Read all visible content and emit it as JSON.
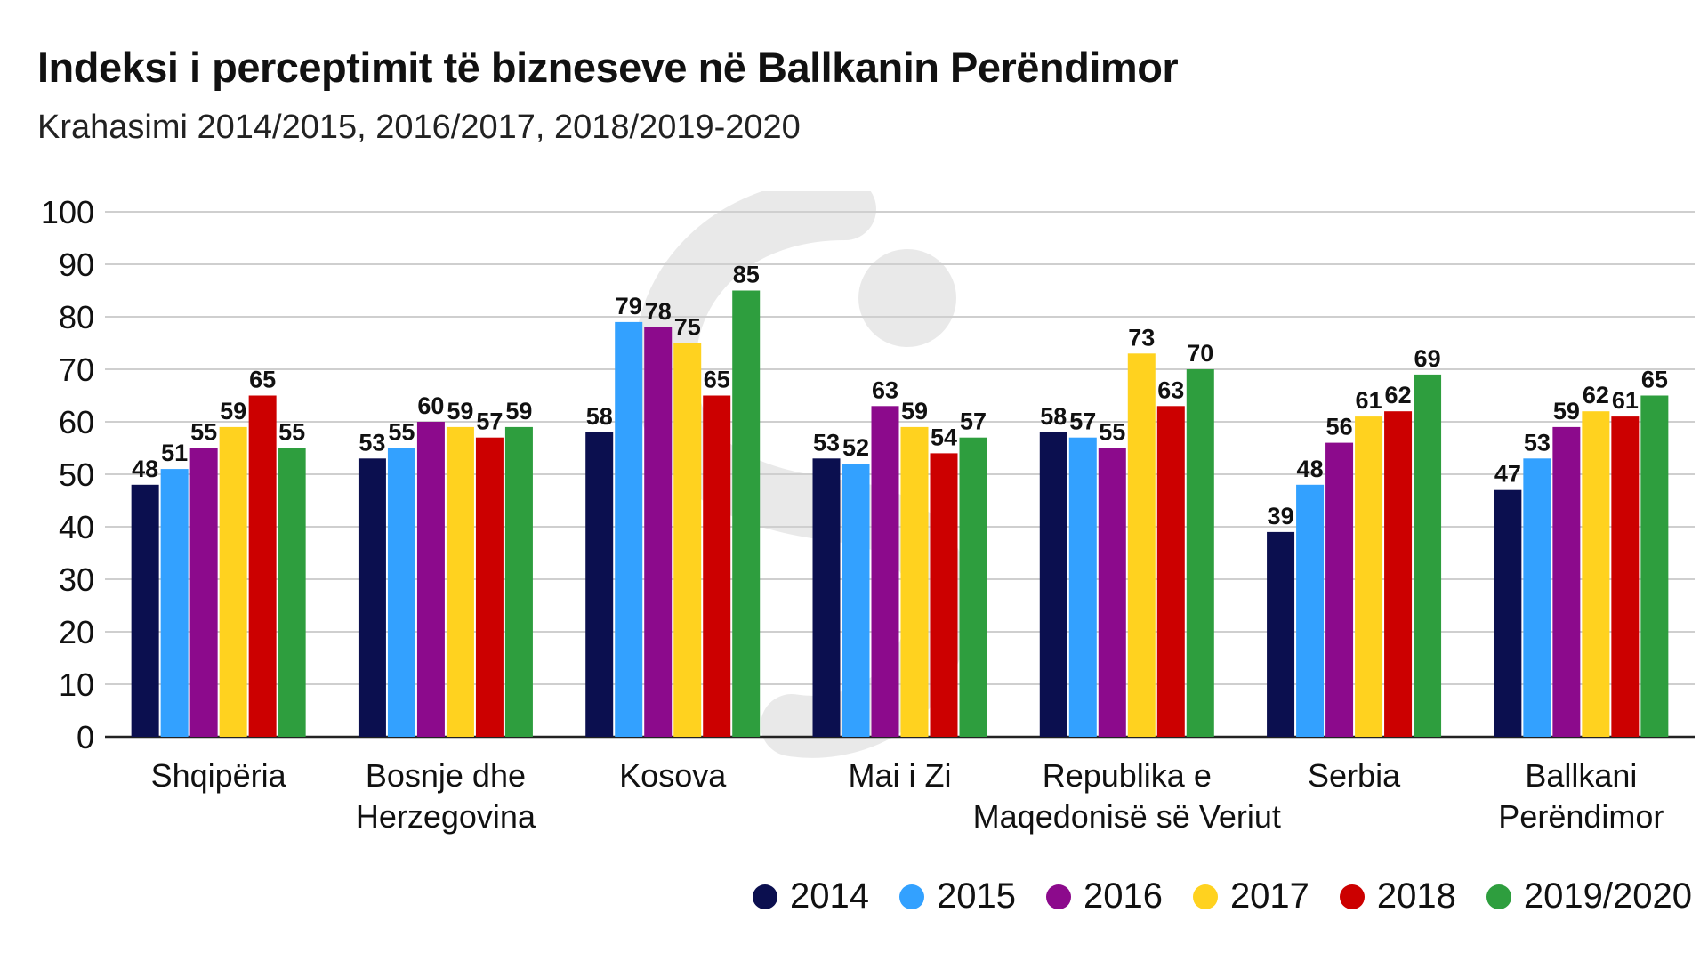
{
  "title": "Indeksi i perceptimit të bizneseve në Ballkanin Perëndimor",
  "subtitle": "Krahasimi 2014/2015, 2016/2017, 2018/2019-2020",
  "colors": {
    "2014": "#0b0f4f",
    "2015": "#33a1ff",
    "2016": "#8c0a8c",
    "2017": "#ffd21f",
    "2018": "#cc0000",
    "2019/2020": "#2e9e3e",
    "grid": "#cfcfcf",
    "axis": "#222222"
  },
  "chart_data": {
    "type": "bar",
    "title": "Indeksi i perceptimit të bizneseve në Ballkanin Perëndimor",
    "subtitle": "Krahasimi 2014/2015, 2016/2017, 2018/2019-2020",
    "xlabel": "",
    "ylabel": "",
    "ylim": [
      0,
      100
    ],
    "yticks": [
      "0",
      "10",
      "20",
      "30",
      "40",
      "50",
      "60",
      "70",
      "80",
      "90",
      "100"
    ],
    "grid": true,
    "legend_position": "bottom-right",
    "categories": [
      [
        "Shqipëria"
      ],
      [
        "Bosnje dhe",
        "Herzegovina"
      ],
      [
        "Kosova"
      ],
      [
        "Mai i Zi"
      ],
      [
        "Republika e",
        "Maqedonisë së Veriut"
      ],
      [
        "Serbia"
      ],
      [
        "Ballkani",
        "Perëndimor"
      ]
    ],
    "series": [
      {
        "name": "2014",
        "values": [
          48,
          53,
          58,
          53,
          58,
          39,
          47
        ]
      },
      {
        "name": "2015",
        "values": [
          51,
          55,
          79,
          52,
          57,
          48,
          53
        ]
      },
      {
        "name": "2016",
        "values": [
          55,
          60,
          78,
          63,
          55,
          56,
          59
        ]
      },
      {
        "name": "2017",
        "values": [
          59,
          59,
          75,
          59,
          73,
          61,
          62
        ]
      },
      {
        "name": "2018",
        "values": [
          65,
          57,
          65,
          54,
          63,
          62,
          61
        ]
      },
      {
        "name": "2019/2020",
        "values": [
          55,
          59,
          85,
          57,
          70,
          69,
          65
        ]
      }
    ]
  }
}
